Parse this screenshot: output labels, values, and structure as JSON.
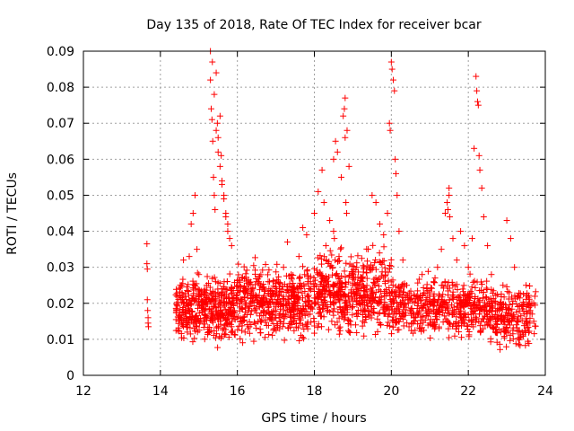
{
  "chart_data": {
    "type": "scatter",
    "title": "Day 135 of 2018, Rate Of TEC Index for receiver bcar",
    "xlabel": "GPS time / hours",
    "ylabel": "ROTI / TECUs",
    "xlim": [
      12,
      24
    ],
    "ylim": [
      0,
      0.09
    ],
    "xticks": [
      "12",
      "14",
      "16",
      "18",
      "20",
      "22",
      "24"
    ],
    "yticks": [
      "0",
      "0.01",
      "0.02",
      "0.03",
      "0.04",
      "0.05",
      "0.06",
      "0.07",
      "0.08",
      "0.09"
    ],
    "grid": true,
    "marker": "+",
    "color": "#ff0000",
    "series": [
      {
        "name": "ROTI",
        "x": [
          13.65,
          13.65,
          13.66,
          13.66,
          13.67,
          13.68,
          13.68,
          13.69,
          14.45,
          14.5,
          14.55,
          14.6,
          14.65,
          14.7,
          14.75,
          14.8,
          14.85,
          14.9,
          14.95,
          15.0,
          15.1,
          15.2,
          15.3,
          15.35,
          15.4,
          15.45,
          15.5,
          15.55,
          15.6,
          15.65,
          15.7,
          15.75,
          15.8,
          15.85,
          15.3,
          15.32,
          15.34,
          15.36,
          15.38,
          15.4,
          15.42,
          15.45,
          15.48,
          15.5,
          15.55,
          15.58,
          15.6,
          15.65,
          15.7,
          15.75,
          16.0,
          16.1,
          16.2,
          16.3,
          16.4,
          16.5,
          16.6,
          16.7,
          16.8,
          16.9,
          17.0,
          17.1,
          17.2,
          17.3,
          17.4,
          17.5,
          17.6,
          17.7,
          17.8,
          17.9,
          18.0,
          18.1,
          18.2,
          18.25,
          18.3,
          18.4,
          18.5,
          18.55,
          18.6,
          18.7,
          18.75,
          18.8,
          18.85,
          18.9,
          18.5,
          18.52,
          18.54,
          18.78,
          18.8,
          18.82,
          18.84,
          19.0,
          19.1,
          19.2,
          19.3,
          19.4,
          19.5,
          19.6,
          19.7,
          19.8,
          19.9,
          19.95,
          19.97,
          20.0,
          20.02,
          20.05,
          20.08,
          20.1,
          20.12,
          20.15,
          20.2,
          20.3,
          20.4,
          20.5,
          20.6,
          20.7,
          20.8,
          20.9,
          21.0,
          21.1,
          21.2,
          21.3,
          21.4,
          21.5,
          21.6,
          21.7,
          21.8,
          21.9,
          21.45,
          21.47,
          21.5,
          21.52,
          22.0,
          22.1,
          22.15,
          22.2,
          22.22,
          22.24,
          22.26,
          22.28,
          22.3,
          22.35,
          22.4,
          22.5,
          22.6,
          22.7,
          22.8,
          22.9,
          23.0,
          23.1,
          23.2,
          23.3,
          23.4,
          23.5,
          23.6,
          23.7
        ],
        "y": [
          0.0365,
          0.031,
          0.0295,
          0.021,
          0.018,
          0.016,
          0.0145,
          0.0135,
          0.0125,
          0.0155,
          0.025,
          0.032,
          0.018,
          0.012,
          0.033,
          0.042,
          0.045,
          0.05,
          0.035,
          0.028,
          0.018,
          0.025,
          0.09,
          0.087,
          0.078,
          0.068,
          0.062,
          0.058,
          0.054,
          0.05,
          0.045,
          0.042,
          0.038,
          0.036,
          0.082,
          0.074,
          0.071,
          0.065,
          0.055,
          0.05,
          0.046,
          0.084,
          0.07,
          0.066,
          0.072,
          0.061,
          0.053,
          0.049,
          0.044,
          0.04,
          0.02,
          0.015,
          0.012,
          0.018,
          0.024,
          0.022,
          0.015,
          0.018,
          0.026,
          0.021,
          0.019,
          0.023,
          0.03,
          0.037,
          0.028,
          0.019,
          0.033,
          0.041,
          0.039,
          0.026,
          0.045,
          0.051,
          0.057,
          0.048,
          0.036,
          0.043,
          0.06,
          0.065,
          0.062,
          0.055,
          0.072,
          0.077,
          0.068,
          0.058,
          0.04,
          0.038,
          0.032,
          0.074,
          0.066,
          0.048,
          0.045,
          0.025,
          0.03,
          0.018,
          0.022,
          0.035,
          0.05,
          0.048,
          0.042,
          0.039,
          0.045,
          0.07,
          0.068,
          0.087,
          0.085,
          0.082,
          0.079,
          0.06,
          0.056,
          0.05,
          0.04,
          0.032,
          0.025,
          0.018,
          0.015,
          0.02,
          0.028,
          0.021,
          0.022,
          0.026,
          0.03,
          0.035,
          0.045,
          0.05,
          0.038,
          0.032,
          0.04,
          0.036,
          0.048,
          0.046,
          0.052,
          0.044,
          0.03,
          0.038,
          0.063,
          0.083,
          0.079,
          0.076,
          0.075,
          0.061,
          0.057,
          0.052,
          0.044,
          0.036,
          0.028,
          0.02,
          0.018,
          0.025,
          0.043,
          0.038,
          0.03,
          0.022,
          0.012,
          0.025,
          0.02,
          0.015
        ]
      }
    ],
    "noise_bands": [
      {
        "x_range": [
          14.4,
          16.0
        ],
        "y_range": [
          0.007,
          0.03
        ],
        "count": 420
      },
      {
        "x_range": [
          16.0,
          18.0
        ],
        "y_range": [
          0.007,
          0.034
        ],
        "count": 480
      },
      {
        "x_range": [
          18.0,
          20.0
        ],
        "y_range": [
          0.008,
          0.038
        ],
        "count": 480
      },
      {
        "x_range": [
          20.0,
          22.5
        ],
        "y_range": [
          0.008,
          0.03
        ],
        "count": 480
      },
      {
        "x_range": [
          22.5,
          23.75
        ],
        "y_range": [
          0.005,
          0.028
        ],
        "count": 230
      }
    ]
  }
}
